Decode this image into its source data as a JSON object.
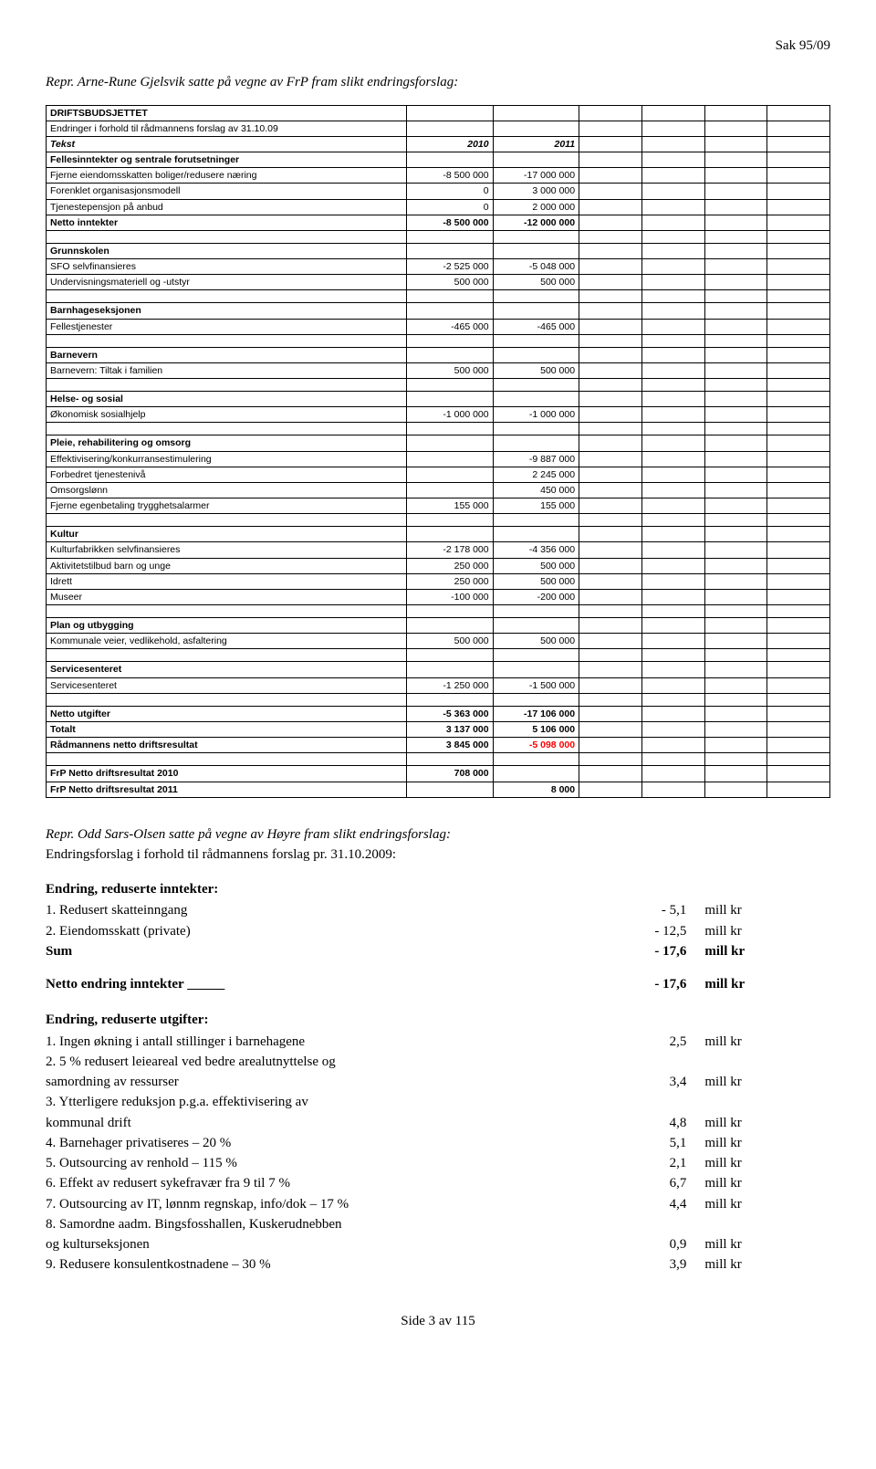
{
  "page_header": "Sak 95/09",
  "intro": "Repr. Arne-Rune Gjelsvik satte på vegne av FrP fram slikt endringsforslag:",
  "budget": {
    "title": "DRIFTSBUDSJETTET",
    "subtitle": "Endringer i forhold til rådmannens forslag av 31.10.09",
    "header_row": {
      "tekst": "Tekst",
      "c1": "2010",
      "c2": "2011"
    },
    "sections": [
      {
        "heading": "Fellesinntekter og sentrale forutsetninger",
        "rows": [
          {
            "label": "Fjerne eiendomsskatten boliger/redusere næring",
            "v1": "-8 500 000",
            "v2": "-17 000 000"
          },
          {
            "label": "Forenklet organisasjonsmodell",
            "v1": "0",
            "v2": "3 000 000"
          },
          {
            "label": "Tjenestepensjon på anbud",
            "v1": "0",
            "v2": "2 000 000"
          },
          {
            "label": "Netto inntekter",
            "v1": "-8 500 000",
            "v2": "-12 000 000",
            "bold": true
          }
        ]
      },
      {
        "heading": "Grunnskolen",
        "rows": [
          {
            "label": "SFO selvfinansieres",
            "v1": "-2 525 000",
            "v2": "-5 048 000"
          },
          {
            "label": "Undervisningsmateriell og -utstyr",
            "v1": "500 000",
            "v2": "500 000"
          }
        ]
      },
      {
        "heading": "Barnhageseksjonen",
        "rows": [
          {
            "label": "Fellestjenester",
            "v1": "-465 000",
            "v2": "-465 000"
          }
        ]
      },
      {
        "heading": "Barnevern",
        "rows": [
          {
            "label": "Barnevern: Tiltak i familien",
            "v1": "500 000",
            "v2": "500 000"
          }
        ]
      },
      {
        "heading": "Helse- og sosial",
        "rows": [
          {
            "label": "Økonomisk sosialhjelp",
            "v1": "-1 000 000",
            "v2": "-1 000 000"
          }
        ]
      },
      {
        "heading": "Pleie, rehabilitering og omsorg",
        "rows": [
          {
            "label": "Effektivisering/konkurransestimulering",
            "v1": "",
            "v2": "-9 887 000"
          },
          {
            "label": "Forbedret tjenestenivå",
            "v1": "",
            "v2": "2 245 000"
          },
          {
            "label": "Omsorgslønn",
            "v1": "",
            "v2": "450 000"
          },
          {
            "label": "Fjerne egenbetaling trygghetsalarmer",
            "v1": "155 000",
            "v2": "155 000"
          }
        ]
      },
      {
        "heading": "Kultur",
        "rows": [
          {
            "label": "Kulturfabrikken selvfinansieres",
            "v1": "-2 178 000",
            "v2": "-4 356 000"
          },
          {
            "label": "Aktivitetstilbud barn og unge",
            "v1": "250 000",
            "v2": "500 000"
          },
          {
            "label": "Idrett",
            "v1": "250 000",
            "v2": "500 000"
          },
          {
            "label": "Museer",
            "v1": "-100 000",
            "v2": "-200 000"
          }
        ]
      },
      {
        "heading": "Plan og utbygging",
        "rows": [
          {
            "label": "Kommunale veier, vedlikehold, asfaltering",
            "v1": "500 000",
            "v2": "500 000"
          }
        ]
      },
      {
        "heading": "Servicesenteret",
        "rows": [
          {
            "label": "Servicesenteret",
            "v1": "-1 250 000",
            "v2": "-1 500 000"
          }
        ]
      }
    ],
    "totals": [
      {
        "label": "Netto utgifter",
        "v1": "-5 363 000",
        "v2": "-17 106 000",
        "bold": true
      },
      {
        "label": "Totalt",
        "v1": "3 137 000",
        "v2": "5 106 000",
        "bold": true
      },
      {
        "label": "Rådmannens netto driftsresultat",
        "v1": "3 845 000",
        "v2": "-5 098 000",
        "bold": true,
        "v2_red": true
      }
    ],
    "results": [
      {
        "label": "FrP Netto driftsresultat 2010",
        "v1": "708 000",
        "v2": "",
        "bold": true
      },
      {
        "label": "FrP Netto driftsresultat 2011",
        "v1": "",
        "v2": "8 000",
        "bold": true
      }
    ]
  },
  "hoyre_intro1": "Repr. Odd Sars-Olsen satte på vegne av Høyre fram slikt endringsforslag:",
  "hoyre_intro2": "Endringsforslag i forhold til rådmannens forslag pr. 31.10.2009:",
  "red_inntekter": {
    "heading": "Endring, reduserte inntekter:",
    "rows": [
      {
        "label": "1. Redusert skatteinngang",
        "val": "- 5,1",
        "unit": "mill kr"
      },
      {
        "label": "2. Eiendomsskatt (private)",
        "val": "- 12,5",
        "unit": "mill kr"
      }
    ],
    "sum": {
      "label": "Sum",
      "val": "- 17,6",
      "unit": "mill kr"
    }
  },
  "netto_endring": {
    "label": "Netto endring inntekter",
    "val": "- 17,6",
    "unit": "mill kr"
  },
  "red_utgifter": {
    "heading": "Endring, reduserte utgifter:",
    "rows": [
      {
        "label": "1. Ingen økning i antall stillinger i barnehagene",
        "val": "2,5",
        "unit": "mill kr"
      },
      {
        "label": "2. 5 % redusert leieareal ved bedre arealutnyttelse og",
        "val": "",
        "unit": ""
      },
      {
        "label": "samordning av ressurser",
        "val": "3,4",
        "unit": "mill kr",
        "indent": true
      },
      {
        "label": "3. Ytterligere reduksjon p.g.a. effektivisering av",
        "val": "",
        "unit": ""
      },
      {
        "label": "kommunal drift",
        "val": "4,8",
        "unit": "mill kr",
        "indent": true
      },
      {
        "label": "4. Barnehager privatiseres – 20 %",
        "val": "5,1",
        "unit": "mill kr"
      },
      {
        "label": "5. Outsourcing av renhold – 115 %",
        "val": "2,1",
        "unit": "mill kr"
      },
      {
        "label": "6. Effekt av redusert sykefravær fra 9 til 7 %",
        "val": "6,7",
        "unit": "mill kr"
      },
      {
        "label": "7. Outsourcing av IT, lønnm regnskap, info/dok – 17 %",
        "val": "4,4",
        "unit": "mill kr"
      },
      {
        "label": "8. Samordne aadm. Bingsfosshallen, Kuskerudnebben",
        "val": "",
        "unit": ""
      },
      {
        "label": "og kulturseksjonen",
        "val": "0,9",
        "unit": "mill kr",
        "indent": true
      },
      {
        "label": "9. Redusere konsulentkostnadene – 30 %",
        "val": "3,9",
        "unit": "mill kr"
      }
    ]
  },
  "footer": "Side 3 av 115"
}
